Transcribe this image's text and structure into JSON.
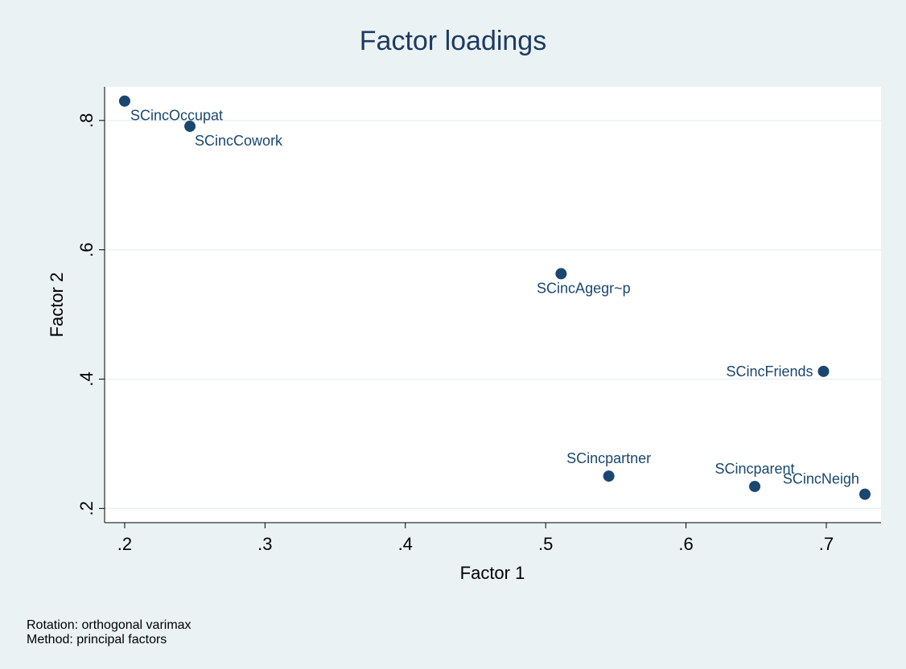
{
  "chart_data": {
    "type": "scatter",
    "title": "Factor loadings",
    "x_label": "Factor 1",
    "y_label": "Factor 2",
    "notes": [
      "Rotation: orthogonal varimax",
      "Method: principal factors"
    ],
    "color": "#1a476f",
    "grid": true,
    "labels": [
      "SCincOccupat",
      "SCincCowork",
      "SCincAgegr~p",
      "SCincFriends",
      "SCincpartner",
      "SCincparent",
      "SCincNeigh"
    ],
    "x": [
      0.2,
      0.2465,
      0.511,
      0.698,
      0.545,
      0.649,
      0.7275
    ],
    "values": [
      0.83,
      0.791,
      0.563,
      0.412,
      0.25,
      0.234,
      0.222
    ],
    "xlim": [
      0.1857,
      0.739
    ],
    "ylim": [
      0.178,
      0.852
    ],
    "xticks": [
      {
        "value": 0.2,
        "label": ".2"
      },
      {
        "value": 0.3,
        "label": ".3"
      },
      {
        "value": 0.4,
        "label": ".4"
      },
      {
        "value": 0.5,
        "label": ".5"
      },
      {
        "value": 0.6,
        "label": ".6"
      },
      {
        "value": 0.7,
        "label": ".7"
      }
    ],
    "yticks": [
      {
        "value": 0.2,
        "label": ".2"
      },
      {
        "value": 0.4,
        "label": ".4"
      },
      {
        "value": 0.6,
        "label": ".6"
      },
      {
        "value": 0.8,
        "label": ".8"
      }
    ]
  }
}
